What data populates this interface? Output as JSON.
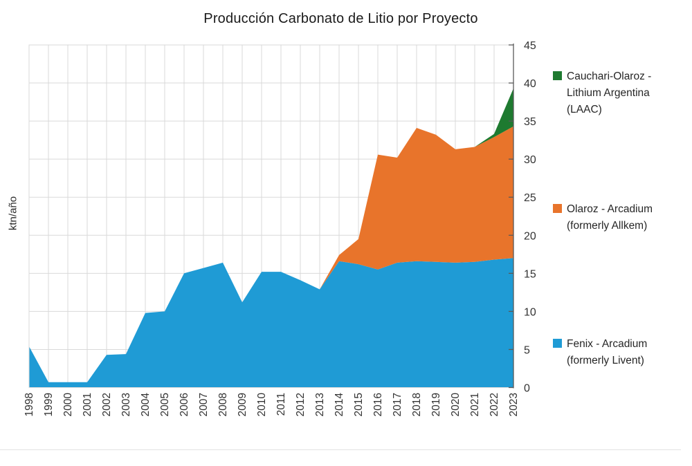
{
  "title": "Producción Carbonato de Litio por Proyecto",
  "y_axis_label": "ktn/año",
  "legend": [
    {
      "id": "cauchari",
      "label": "Cauchari-Olaroz - Lithium Argentina (LAAC)",
      "color": "#1E7A30"
    },
    {
      "id": "olaroz",
      "label": "Olaroz - Arcadium (formerly Allkem)",
      "color": "#E8742B"
    },
    {
      "id": "fenix",
      "label": "Fenix - Arcadium (formerly Livent)",
      "color": "#1F9BD5"
    }
  ],
  "chart_data": {
    "type": "area",
    "stacked": true,
    "title": "Producción Carbonato de Litio por Proyecto",
    "xlabel": "",
    "ylabel": "ktn/año",
    "ylim": [
      0,
      45
    ],
    "ytick_interval": 5,
    "yticks": [
      0,
      5,
      10,
      15,
      20,
      25,
      30,
      35,
      40,
      45
    ],
    "grid": true,
    "legend_position": "right",
    "x": [
      1998,
      1999,
      2000,
      2001,
      2002,
      2003,
      2004,
      2005,
      2006,
      2007,
      2008,
      2009,
      2010,
      2011,
      2012,
      2013,
      2014,
      2015,
      2016,
      2017,
      2018,
      2019,
      2020,
      2021,
      2022,
      2023
    ],
    "series": [
      {
        "id": "fenix",
        "name": "Fenix - Arcadium (formerly Livent)",
        "color": "#1F9BD5",
        "values": [
          5.4,
          0.7,
          0.7,
          0.7,
          4.3,
          4.4,
          9.8,
          10.0,
          15.0,
          15.7,
          16.4,
          11.2,
          15.2,
          15.2,
          14.1,
          12.9,
          16.6,
          16.2,
          15.5,
          16.4,
          16.6,
          16.5,
          16.4,
          16.5,
          16.8,
          17.0
        ]
      },
      {
        "id": "olaroz",
        "name": "Olaroz - Arcadium (formerly Allkem)",
        "color": "#E8742B",
        "values": [
          0,
          0,
          0,
          0,
          0,
          0,
          0,
          0,
          0,
          0,
          0,
          0,
          0,
          0,
          0,
          0,
          0.8,
          3.3,
          15.1,
          13.8,
          17.5,
          16.7,
          14.9,
          15.1,
          16.1,
          17.3
        ]
      },
      {
        "id": "cauchari",
        "name": "Cauchari-Olaroz - Lithium Argentina (LAAC)",
        "color": "#1E7A30",
        "values": [
          0,
          0,
          0,
          0,
          0,
          0,
          0,
          0,
          0,
          0,
          0,
          0,
          0,
          0,
          0,
          0,
          0,
          0,
          0,
          0,
          0,
          0,
          0,
          0,
          0.4,
          5.0
        ]
      }
    ],
    "style": {
      "grid_color": "#D9D9D9",
      "axis_color": "#595959",
      "tick_label_color": "#333333"
    }
  }
}
